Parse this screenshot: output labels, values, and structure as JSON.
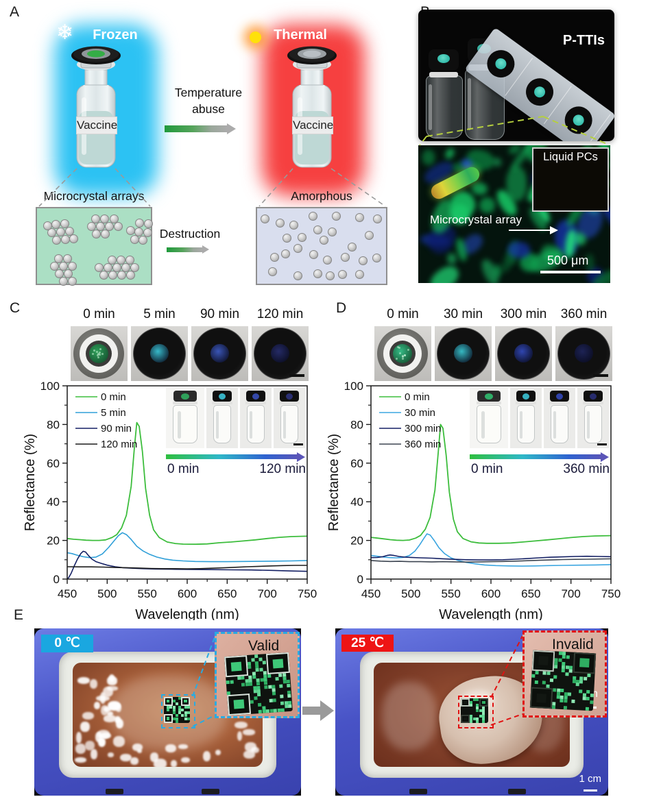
{
  "figure": {
    "panel_a": {
      "label": "A",
      "frozen_title": "Frozen",
      "thermal_title": "Thermal",
      "vial_label": "Vaccine",
      "transition_label": "Temperature abuse",
      "destruction_label": "Destruction",
      "frozen_structure_label": "Microcrystal arrays",
      "thermal_structure_label": "Amorphous",
      "colors": {
        "frozen_glow": "#2cc2f3",
        "thermal_glow": "#f64040",
        "frozen_box_bg": "#abdfc4",
        "thermal_box_bg": "#d9deee"
      }
    },
    "panel_b": {
      "label": "B",
      "photo_title": "P-TTIs",
      "inset_title": "Liquid PCs",
      "micrograph_label": "Microcrystal array",
      "scale_bar_label": "500 μm"
    },
    "panel_c": {
      "label": "C"
    },
    "panel_d": {
      "label": "D"
    },
    "panel_e": {
      "label": "E",
      "left": {
        "temperature": "0 ℃",
        "badge_color": "#1aa7e0",
        "inset_label": "Valid",
        "border_color": "#29abe2"
      },
      "right": {
        "temperature": "25 ℃",
        "badge_color": "#ee1414",
        "inset_label": "Invalid",
        "border_color": "#e01212",
        "inset_scale_label": "1 cm",
        "photo_scale_label": "1 cm"
      }
    }
  },
  "chart_data": [
    {
      "panel": "C",
      "type": "line",
      "photo_times": [
        "0 min",
        "5 min",
        "90 min",
        "120 min"
      ],
      "photo_dot_colors": [
        "#2f9f5a",
        "#37b9c9",
        "#3a55b5",
        "#252b66"
      ],
      "xlabel": "Wavelength (nm)",
      "ylabel": "Reflectance (%)",
      "xlim": [
        450,
        750
      ],
      "ylim": [
        0,
        100
      ],
      "xticks": [
        450,
        500,
        550,
        600,
        650,
        700,
        750
      ],
      "yticks": [
        0,
        20,
        40,
        60,
        80,
        100
      ],
      "grid": false,
      "legend_position": "top-left",
      "inset": {
        "start_label": "0 min",
        "end_label": "120 min",
        "cap_colors": [
          "#2fa05a",
          "#37b2c4",
          "#3448a8",
          "#2a2f72"
        ]
      },
      "series": [
        {
          "name": "0 min",
          "color": "#3cbd3c",
          "x": [
            450,
            458,
            466,
            474,
            482,
            490,
            498,
            506,
            512,
            518,
            524,
            530,
            534,
            537,
            540,
            544,
            548,
            553,
            558,
            565,
            575,
            585,
            595,
            610,
            625,
            640,
            655,
            670,
            685,
            700,
            715,
            730,
            750
          ],
          "values": [
            21,
            20.6,
            20.4,
            20.1,
            20,
            20,
            20.3,
            21.5,
            23,
            26.5,
            33,
            48,
            68,
            81,
            79,
            66,
            47,
            33,
            25.5,
            21.5,
            19.2,
            18.4,
            18.1,
            18,
            18.2,
            18.8,
            19.2,
            19.7,
            20.3,
            21,
            21.6,
            22,
            22.2
          ]
        },
        {
          "name": "5 min",
          "color": "#2f9fd8",
          "x": [
            450,
            456,
            462,
            470,
            478,
            486,
            494,
            502,
            508,
            514,
            519,
            524,
            530,
            537,
            545,
            553,
            562,
            572,
            582,
            595,
            610,
            630,
            650,
            670,
            690,
            710,
            730,
            750
          ],
          "values": [
            13.6,
            13.2,
            12.4,
            11.6,
            11.1,
            11.4,
            13,
            16.5,
            19.5,
            22.5,
            24,
            23,
            20.5,
            17,
            14.5,
            12.8,
            11.4,
            10.4,
            9.8,
            9.4,
            9.1,
            9,
            9,
            9.1,
            9.2,
            9.3,
            9.4,
            9.6
          ]
        },
        {
          "name": "90 min",
          "color": "#131f63",
          "x": [
            450,
            452,
            455,
            459,
            463,
            467,
            470,
            473,
            477,
            481,
            486,
            492,
            500,
            510,
            520,
            532,
            545,
            560,
            580,
            605,
            630,
            655,
            680,
            705,
            730,
            750
          ],
          "values": [
            0,
            0.8,
            3,
            7,
            10.5,
            13.2,
            14.4,
            14,
            12,
            10.3,
            9,
            8.2,
            7.2,
            6.4,
            5.9,
            5.6,
            5.4,
            5.2,
            5.1,
            5,
            4.9,
            4.8,
            4.7,
            4.5,
            4.2,
            4
          ]
        },
        {
          "name": "120 min",
          "color": "#1c1c1c",
          "x": [
            450,
            465,
            480,
            495,
            510,
            525,
            540,
            555,
            570,
            585,
            600,
            615,
            630,
            645,
            660,
            675,
            690,
            705,
            720,
            735,
            750
          ],
          "values": [
            6.4,
            6.3,
            6.3,
            6.2,
            6,
            5.9,
            5.7,
            5.5,
            5.4,
            5.4,
            5.3,
            5.4,
            5.6,
            5.8,
            6.1,
            6.4,
            6.6,
            6.8,
            7,
            7.1,
            7.1
          ]
        }
      ]
    },
    {
      "panel": "D",
      "type": "line",
      "photo_times": [
        "0 min",
        "30 min",
        "300 min",
        "360 min"
      ],
      "photo_dot_colors": [
        "#35bb86",
        "#36b9c2",
        "#3046b0",
        "#1d2355"
      ],
      "xlabel": "Wavelength (nm)",
      "ylabel": "Reflectance (%)",
      "xlim": [
        450,
        750
      ],
      "ylim": [
        0,
        100
      ],
      "xticks": [
        450,
        500,
        550,
        600,
        650,
        700,
        750
      ],
      "yticks": [
        0,
        20,
        40,
        60,
        80,
        100
      ],
      "grid": false,
      "legend_position": "top-left",
      "inset": {
        "start_label": "0 min",
        "end_label": "360 min",
        "cap_colors": [
          "#2fae68",
          "#36b0c0",
          "#2f42a8",
          "#272c6e"
        ]
      },
      "series": [
        {
          "name": "0 min",
          "color": "#3cbd3c",
          "x": [
            450,
            458,
            466,
            474,
            482,
            490,
            498,
            506,
            512,
            518,
            524,
            530,
            534,
            537,
            540,
            544,
            548,
            553,
            558,
            565,
            575,
            585,
            595,
            610,
            625,
            640,
            655,
            670,
            685,
            700,
            715,
            730,
            750
          ],
          "values": [
            21.6,
            21.2,
            20.8,
            20.4,
            20.1,
            20,
            20.2,
            21.2,
            22.6,
            25.8,
            32,
            46,
            65,
            80,
            78,
            64,
            45,
            31,
            24.5,
            21,
            19.3,
            18.7,
            18.5,
            18.5,
            18.7,
            19.2,
            19.7,
            20.3,
            20.9,
            21.5,
            22,
            22.3,
            22.5
          ]
        },
        {
          "name": "30 min",
          "color": "#3aa5e0",
          "x": [
            450,
            458,
            466,
            474,
            482,
            490,
            498,
            505,
            511,
            516,
            520,
            524,
            529,
            535,
            542,
            550,
            559,
            569,
            580,
            592,
            606,
            622,
            638,
            655,
            672,
            690,
            710,
            730,
            750
          ],
          "values": [
            12.2,
            11.8,
            11.4,
            11.1,
            11,
            11.2,
            12.2,
            14.5,
            17.8,
            21,
            23.4,
            22.8,
            20,
            16.2,
            13.2,
            11,
            9.6,
            8.6,
            7.9,
            7.3,
            7,
            6.8,
            6.7,
            6.8,
            7,
            7.1,
            7.2,
            7.3,
            7.5
          ]
        },
        {
          "name": "300 min",
          "color": "#131f63",
          "x": [
            450,
            458,
            465,
            470,
            474,
            479,
            485,
            492,
            500,
            512,
            526,
            540,
            555,
            570,
            585,
            600,
            615,
            630,
            645,
            660,
            675,
            690,
            705,
            720,
            735,
            750
          ],
          "values": [
            11.1,
            11.2,
            11.6,
            12.2,
            12.5,
            12.2,
            11.7,
            11.4,
            11.2,
            11,
            10.8,
            10.5,
            10.2,
            10,
            9.9,
            9.9,
            10,
            10.3,
            10.6,
            11,
            11.3,
            11.5,
            11.7,
            11.8,
            11.7,
            11.6
          ]
        },
        {
          "name": "360 min",
          "color": "#3c4450",
          "x": [
            450,
            462,
            474,
            486,
            498,
            512,
            526,
            540,
            555,
            570,
            585,
            600,
            615,
            630,
            645,
            660,
            675,
            690,
            705,
            720,
            735,
            750
          ],
          "values": [
            9.6,
            9.3,
            9.1,
            9.2,
            9,
            9,
            8.9,
            9,
            8.9,
            8.8,
            8.9,
            9,
            9.1,
            9.3,
            9.5,
            9.7,
            9.9,
            10.1,
            10.2,
            10.3,
            10.4,
            10.5
          ]
        }
      ]
    }
  ]
}
